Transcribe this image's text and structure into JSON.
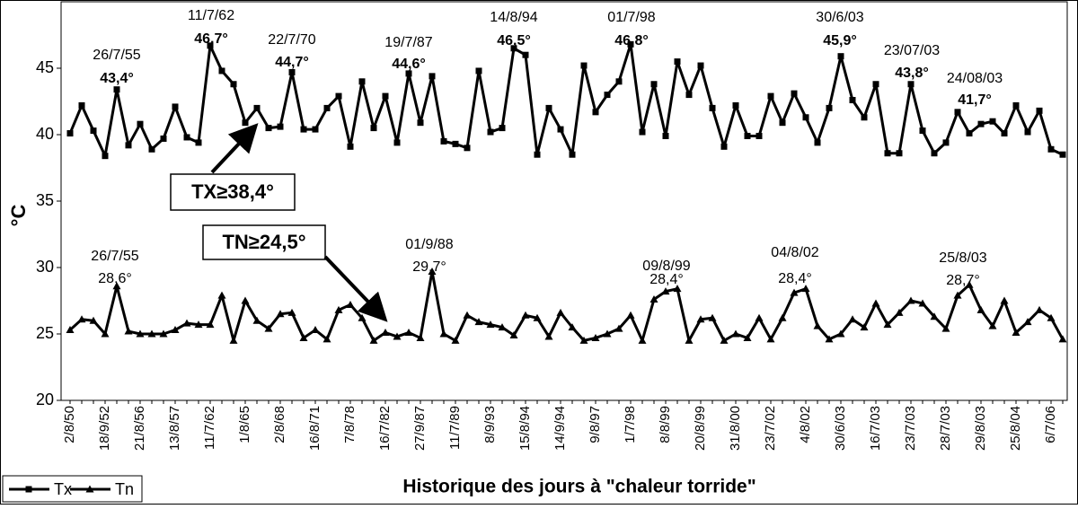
{
  "chart_data": {
    "type": "line",
    "xlabel": "Historique des jours à \"chaleur torride\"",
    "ylabel": "°C",
    "categories": [
      "2/8/50",
      null,
      null,
      "18/9/52",
      null,
      null,
      "21/8/56",
      null,
      null,
      "13/8/57",
      null,
      null,
      "11/7/62",
      null,
      null,
      "1/8/65",
      null,
      null,
      "2/8/68",
      null,
      null,
      "16/8/71",
      null,
      null,
      "7/8/78",
      null,
      null,
      "16/7/82",
      null,
      null,
      "27/9/87",
      null,
      null,
      "11/7/89",
      null,
      null,
      "8/9/93",
      null,
      null,
      "15/8/94",
      null,
      null,
      "14/9/94",
      null,
      null,
      "9/8/97",
      null,
      null,
      "1/7/98",
      null,
      null,
      "8/8/99",
      null,
      null,
      "20/8/99",
      null,
      null,
      "31/8/00",
      null,
      null,
      "23/7/02",
      null,
      null,
      "4/8/02",
      null,
      null,
      "30/6/03",
      null,
      null,
      "16/7/03",
      null,
      null,
      "23/7/03",
      null,
      null,
      "28/7/03",
      null,
      null,
      "29/8/03",
      null,
      null,
      "25/8/04",
      null,
      null,
      "6/7/06",
      null
    ],
    "series": [
      {
        "name": "Tx",
        "color": "#000000",
        "marker": "square",
        "values": [
          40.1,
          42.2,
          40.3,
          38.4,
          43.4,
          39.2,
          40.8,
          38.9,
          39.7,
          42.1,
          39.8,
          39.4,
          46.7,
          44.8,
          43.8,
          40.9,
          42.0,
          40.5,
          40.6,
          44.7,
          40.4,
          40.4,
          42.0,
          42.9,
          39.1,
          44.0,
          40.5,
          42.9,
          39.4,
          44.6,
          40.9,
          44.4,
          39.5,
          39.3,
          39.0,
          44.8,
          40.2,
          40.5,
          46.5,
          46.0,
          38.5,
          42.0,
          40.4,
          38.5,
          45.2,
          41.7,
          43.0,
          44.0,
          46.8,
          40.2,
          43.8,
          39.9,
          45.5,
          43.0,
          45.2,
          42.0,
          39.1,
          42.2,
          39.9,
          39.9,
          42.9,
          40.9,
          43.1,
          41.3,
          39.4,
          42.0,
          45.9,
          42.6,
          41.3,
          43.8,
          38.6,
          38.6,
          43.8,
          40.3,
          38.6,
          39.4,
          41.7,
          40.1,
          40.8,
          41.0,
          40.1,
          42.2,
          40.2,
          41.8,
          38.9,
          38.5
        ]
      },
      {
        "name": "Tn",
        "color": "#000000",
        "marker": "triangle",
        "values": [
          25.3,
          26.1,
          26.0,
          25.0,
          28.6,
          25.2,
          25.0,
          25.0,
          25.0,
          25.3,
          25.8,
          25.7,
          25.7,
          27.9,
          24.5,
          27.5,
          26.0,
          25.4,
          26.5,
          26.6,
          24.7,
          25.3,
          24.6,
          26.8,
          27.2,
          26.2,
          24.5,
          25.1,
          24.8,
          25.1,
          24.7,
          29.7,
          25.0,
          24.5,
          26.4,
          25.9,
          25.7,
          25.5,
          24.9,
          26.4,
          26.2,
          24.8,
          26.6,
          25.5,
          24.5,
          24.7,
          25.0,
          25.4,
          26.4,
          24.5,
          27.6,
          28.2,
          28.4,
          24.5,
          26.1,
          26.2,
          24.5,
          25.0,
          24.7,
          26.2,
          24.6,
          26.2,
          28.1,
          28.4,
          25.6,
          24.6,
          25.0,
          26.1,
          25.5,
          27.3,
          25.7,
          26.6,
          27.5,
          27.3,
          26.3,
          25.4,
          27.9,
          28.7,
          26.8,
          25.6,
          27.5,
          25.1,
          25.9,
          26.8,
          26.2,
          24.6
        ]
      }
    ],
    "ylim": [
      20,
      50
    ],
    "yticks": [
      20,
      25,
      30,
      35,
      40,
      45
    ],
    "grid": false,
    "legend": "bottom-left",
    "tx_annotations": [
      {
        "date": "26/7/55",
        "value": "43,4°"
      },
      {
        "date": "11/7/62",
        "value": "46,7°"
      },
      {
        "date": "22/7/70",
        "value": "44,7°"
      },
      {
        "date": "19/7/87",
        "value": "44,6°"
      },
      {
        "date": "14/8/94",
        "value": "46,5°"
      },
      {
        "date": "01/7/98",
        "value": "46,8°"
      },
      {
        "date": "30/6/03",
        "value": "45,9°"
      },
      {
        "date": "23/07/03",
        "value": "43,8°"
      },
      {
        "date": "24/08/03",
        "value": "41,7°"
      }
    ],
    "tn_annotations": [
      {
        "date": "26/7/55",
        "value": "28,6°"
      },
      {
        "date": "01/9/88",
        "value": "29,7°"
      },
      {
        "date": "09/8/99",
        "value": "28,4°"
      },
      {
        "date": "04/8/02",
        "value": "28,4°"
      },
      {
        "date": "25/8/03",
        "value": "28,7°"
      }
    ],
    "boxes": [
      "TX≥38,4°",
      "TN≥24,5°"
    ]
  }
}
